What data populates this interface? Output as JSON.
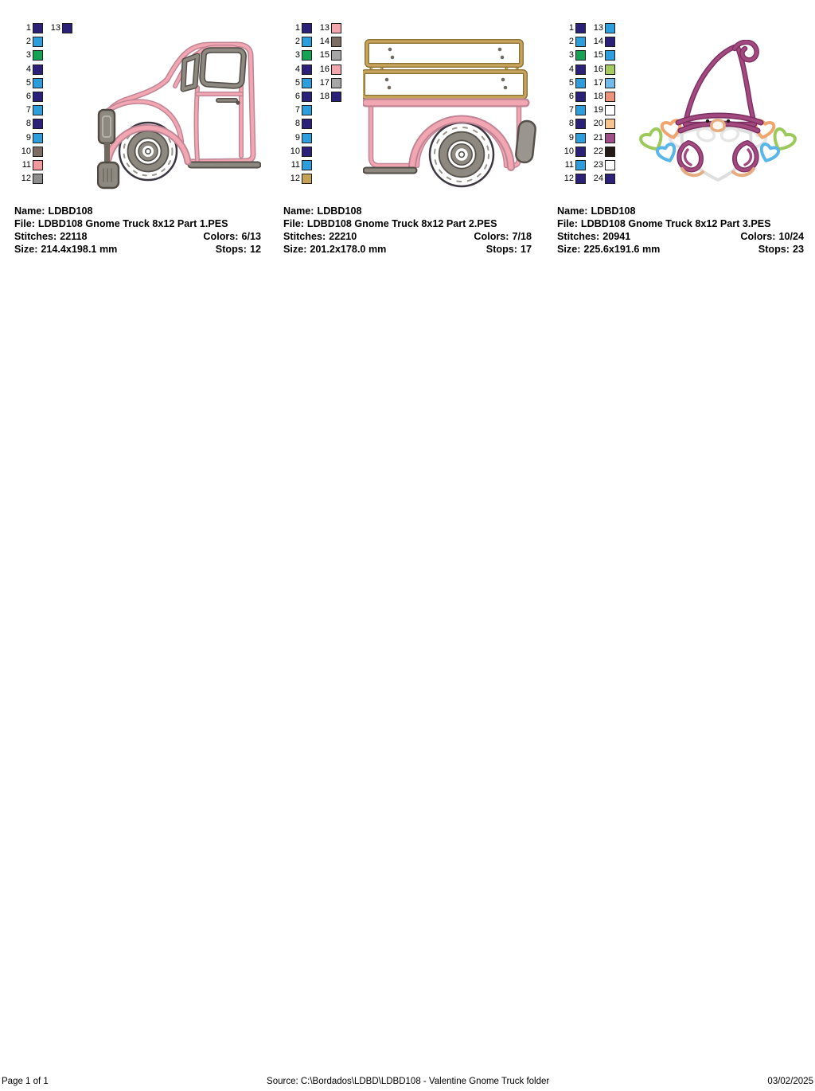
{
  "labels": {
    "name": "Name:",
    "file": "File:",
    "stitches": "Stitches:",
    "colors": "Colors:",
    "size": "Size:",
    "stops": "Stops:"
  },
  "designs": [
    {
      "name": "LDBD108",
      "file": "LDBD108 Gnome Truck 8x12 Part 1.PES",
      "stitches": "22118",
      "colors": "6/13",
      "size": "214.4x198.1 mm",
      "stops": "12",
      "artwork": "pink-vintage-truck-cab",
      "palette": [
        {
          "n": "1",
          "c": "#2b2178"
        },
        {
          "n": "2",
          "c": "#2d9ddb"
        },
        {
          "n": "3",
          "c": "#16a254"
        },
        {
          "n": "4",
          "c": "#2b2178"
        },
        {
          "n": "5",
          "c": "#2d9ddb"
        },
        {
          "n": "6",
          "c": "#2b2178"
        },
        {
          "n": "7",
          "c": "#2d9ddb"
        },
        {
          "n": "8",
          "c": "#2b2178"
        },
        {
          "n": "9",
          "c": "#2d9ddb"
        },
        {
          "n": "10",
          "c": "#7d6c64"
        },
        {
          "n": "11",
          "c": "#f2989f"
        },
        {
          "n": "12",
          "c": "#8e8e8e"
        },
        {
          "n": "13",
          "c": "#2b2178"
        }
      ]
    },
    {
      "name": "LDBD108",
      "file": "LDBD108 Gnome Truck 8x12 Part 2.PES",
      "stitches": "22210",
      "colors": "7/18",
      "size": "201.2x178.0 mm",
      "stops": "17",
      "artwork": "pink-truck-bed",
      "palette": [
        {
          "n": "1",
          "c": "#2b2178"
        },
        {
          "n": "2",
          "c": "#2d9ddb"
        },
        {
          "n": "3",
          "c": "#16a254"
        },
        {
          "n": "4",
          "c": "#2b2178"
        },
        {
          "n": "5",
          "c": "#2d9ddb"
        },
        {
          "n": "6",
          "c": "#2b2178"
        },
        {
          "n": "7",
          "c": "#2d9ddb"
        },
        {
          "n": "8",
          "c": "#2b2178"
        },
        {
          "n": "9",
          "c": "#2d9ddb"
        },
        {
          "n": "10",
          "c": "#2b2178"
        },
        {
          "n": "11",
          "c": "#2d9ddb"
        },
        {
          "n": "12",
          "c": "#c4a258"
        },
        {
          "n": "13",
          "c": "#f3a6ae"
        },
        {
          "n": "14",
          "c": "#7d6c64"
        },
        {
          "n": "15",
          "c": "#a6a6a6"
        },
        {
          "n": "16",
          "c": "#f3a6ae"
        },
        {
          "n": "17",
          "c": "#a6a6a6"
        },
        {
          "n": "18",
          "c": "#2b2178"
        }
      ]
    },
    {
      "name": "LDBD108",
      "file": "LDBD108 Gnome Truck 8x12 Part 3.PES",
      "stitches": "20941",
      "colors": "10/24",
      "size": "225.6x191.6 mm",
      "stops": "23",
      "artwork": "valentine-gnome-with-hearts",
      "palette": [
        {
          "n": "1",
          "c": "#2b2178"
        },
        {
          "n": "2",
          "c": "#2d9ddb"
        },
        {
          "n": "3",
          "c": "#16a254"
        },
        {
          "n": "4",
          "c": "#2b2178"
        },
        {
          "n": "5",
          "c": "#2d9ddb"
        },
        {
          "n": "6",
          "c": "#2b2178"
        },
        {
          "n": "7",
          "c": "#2d9ddb"
        },
        {
          "n": "8",
          "c": "#2b2178"
        },
        {
          "n": "9",
          "c": "#2d9ddb"
        },
        {
          "n": "10",
          "c": "#2b2178"
        },
        {
          "n": "11",
          "c": "#2d9ddb"
        },
        {
          "n": "12",
          "c": "#2b2178"
        },
        {
          "n": "13",
          "c": "#2d9ddb"
        },
        {
          "n": "14",
          "c": "#2b2178"
        },
        {
          "n": "15",
          "c": "#2d9ddb"
        },
        {
          "n": "16",
          "c": "#a6cb60"
        },
        {
          "n": "17",
          "c": "#72bae9"
        },
        {
          "n": "18",
          "c": "#ec937b"
        },
        {
          "n": "19",
          "c": "#ffffff"
        },
        {
          "n": "20",
          "c": "#f5c48f"
        },
        {
          "n": "21",
          "c": "#9f4e87"
        },
        {
          "n": "22",
          "c": "#241b17"
        },
        {
          "n": "23",
          "c": "#ffffff"
        },
        {
          "n": "24",
          "c": "#2b2178"
        }
      ]
    }
  ],
  "footer": {
    "page_label": "Page 1 of 1",
    "source": "Source: C:\\Bordados\\LDBD\\LDBD108 - Valentine Gnome Truck folder",
    "date": "03/02/2025"
  }
}
